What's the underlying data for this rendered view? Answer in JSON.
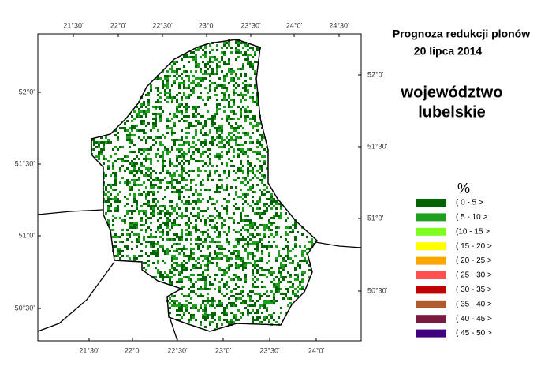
{
  "header": {
    "title": "Prognoza redukcji plonów",
    "date": "20 lipca 2014",
    "region_line1": "województwo",
    "region_line2": "lubelskie"
  },
  "legend": {
    "unit": "%",
    "items": [
      {
        "label": "( 0 - 5 >",
        "color": "#006400"
      },
      {
        "label": "( 5 - 10 >",
        "color": "#1ea01e"
      },
      {
        "label": "(10 - 15 >",
        "color": "#7fff22"
      },
      {
        "label": "( 15 - 20 >",
        "color": "#ffff00"
      },
      {
        "label": "( 20 - 25 >",
        "color": "#ffa500"
      },
      {
        "label": "( 25 - 30 >",
        "color": "#ff5050"
      },
      {
        "label": "( 30 - 35 >",
        "color": "#c00000"
      },
      {
        "label": "( 35 - 40 >",
        "color": "#b05a30"
      },
      {
        "label": "( 40 - 45 >",
        "color": "#7a1a40"
      },
      {
        "label": "( 45 - 50 >",
        "color": "#400080"
      }
    ]
  },
  "map": {
    "top_ticks": [
      "21°30'",
      "22°0'",
      "22°30'",
      "23°0'",
      "23°30'",
      "24°0'",
      "24°30'"
    ],
    "bottom_ticks": [
      "21°30'",
      "22°0'",
      "22°30'",
      "23°0'",
      "23°30'",
      "24°0'"
    ],
    "left_ticks": [
      "52°0'",
      "51°30'",
      "51°0'",
      "50°30'"
    ],
    "right_ticks": [
      "52°0'",
      "51°30'",
      "51°0'",
      "50°30'"
    ]
  }
}
